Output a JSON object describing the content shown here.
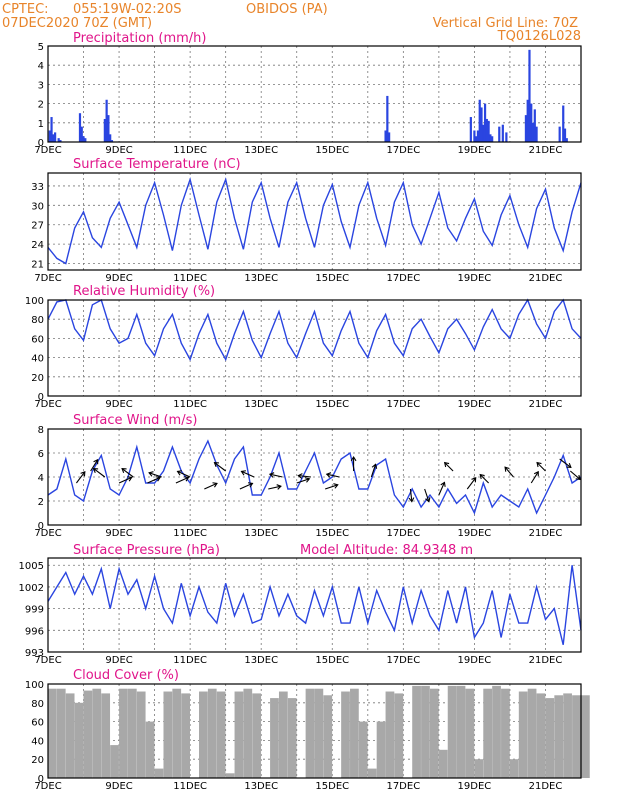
{
  "header": {
    "source": "CPTEC:",
    "coords": "055:19W-02:20S",
    "station": "OBIDOS (PA)",
    "init_time": "07DEC2020 70Z (GMT)",
    "grid_line": "Vertical Grid Line: 70Z",
    "model_code": "TQ0126L028",
    "model_altitude": "Model Altitude: 84.9348 m"
  },
  "x_dates": [
    "7DEC",
    "9DEC",
    "11DEC",
    "13DEC",
    "15DEC",
    "17DEC",
    "19DEC",
    "21DEC"
  ],
  "colors": {
    "series": "#2a45e0",
    "cloud": "#a8a8a8",
    "title": "#e0158a",
    "header": "#e8842a"
  },
  "chart_data": [
    {
      "type": "bar",
      "title": "Precipitation (mm/h)",
      "ylim": [
        0,
        5
      ],
      "yticks": [
        0,
        1,
        2,
        3,
        4,
        5
      ],
      "x_unit": "days since 7DEC",
      "x": [
        0.05,
        0.1,
        0.15,
        0.2,
        0.3,
        0.35,
        0.9,
        0.95,
        1.0,
        1.05,
        1.6,
        1.65,
        1.7,
        1.75,
        1.8,
        9.5,
        9.55,
        9.6,
        11.9,
        12.0,
        12.05,
        12.1,
        12.15,
        12.2,
        12.25,
        12.3,
        12.35,
        12.4,
        12.45,
        12.5,
        12.7,
        12.8,
        12.9,
        13.45,
        13.5,
        13.55,
        13.6,
        13.65,
        13.7,
        13.75,
        14.4,
        14.5,
        14.55,
        14.6
      ],
      "values": [
        0.6,
        1.3,
        0.4,
        0.5,
        0.2,
        0.1,
        1.5,
        0.8,
        0.3,
        0.2,
        1.2,
        2.2,
        1.4,
        0.4,
        0.1,
        0.6,
        2.4,
        0.5,
        1.3,
        0.6,
        0.3,
        0.6,
        2.2,
        1.8,
        0.9,
        2.0,
        1.2,
        1.1,
        0.4,
        0.3,
        0.8,
        0.9,
        0.5,
        1.4,
        2.2,
        4.8,
        2.0,
        1.0,
        1.7,
        0.8,
        0.8,
        1.9,
        0.7,
        0.2
      ]
    },
    {
      "type": "line",
      "title": "Surface Temperature (nC)",
      "ylim": [
        20,
        35
      ],
      "yticks": [
        21,
        24,
        27,
        30,
        33
      ],
      "x_unit": "days since 7DEC",
      "x": [
        0,
        0.25,
        0.5,
        0.75,
        1.0,
        1.25,
        1.5,
        1.75,
        2.0,
        2.25,
        2.5,
        2.75,
        3.0,
        3.25,
        3.5,
        3.75,
        4.0,
        4.25,
        4.5,
        4.75,
        5.0,
        5.25,
        5.5,
        5.75,
        6.0,
        6.25,
        6.5,
        6.75,
        7.0,
        7.25,
        7.5,
        7.75,
        8.0,
        8.25,
        8.5,
        8.75,
        9.0,
        9.25,
        9.5,
        9.75,
        10.0,
        10.25,
        10.5,
        10.75,
        11.0,
        11.25,
        11.5,
        11.75,
        12.0,
        12.25,
        12.5,
        12.75,
        13.0,
        13.25,
        13.5,
        13.75,
        14.0,
        14.25,
        14.5,
        14.75,
        15.0
      ],
      "values": [
        23.5,
        21.8,
        21.0,
        26.5,
        29.0,
        25.0,
        23.5,
        28.0,
        30.5,
        27.0,
        23.5,
        30.0,
        33.5,
        28.5,
        23.0,
        30.0,
        34.0,
        28.5,
        23.2,
        30.5,
        34.0,
        28.0,
        23.2,
        30.5,
        33.5,
        28.0,
        23.5,
        30.5,
        33.5,
        28.0,
        23.5,
        30.0,
        33.2,
        27.5,
        23.5,
        30.0,
        33.5,
        28.0,
        23.8,
        30.5,
        33.5,
        27.0,
        24.0,
        28.0,
        32.0,
        26.5,
        24.5,
        28.0,
        31.0,
        26.0,
        23.8,
        28.5,
        31.5,
        27.0,
        23.5,
        29.5,
        32.5,
        26.5,
        23.0,
        29.0,
        33.5
      ]
    },
    {
      "type": "line",
      "title": "Relative Humidity (%)",
      "ylim": [
        0,
        100
      ],
      "yticks": [
        0,
        20,
        40,
        60,
        80,
        100
      ],
      "x_unit": "days since 7DEC",
      "x": [
        0,
        0.25,
        0.5,
        0.75,
        1.0,
        1.25,
        1.5,
        1.75,
        2.0,
        2.25,
        2.5,
        2.75,
        3.0,
        3.25,
        3.5,
        3.75,
        4.0,
        4.25,
        4.5,
        4.75,
        5.0,
        5.25,
        5.5,
        5.75,
        6.0,
        6.25,
        6.5,
        6.75,
        7.0,
        7.25,
        7.5,
        7.75,
        8.0,
        8.25,
        8.5,
        8.75,
        9.0,
        9.25,
        9.5,
        9.75,
        10.0,
        10.25,
        10.5,
        10.75,
        11.0,
        11.25,
        11.5,
        11.75,
        12.0,
        12.25,
        12.5,
        12.75,
        13.0,
        13.25,
        13.5,
        13.75,
        14.0,
        14.25,
        14.5,
        14.75,
        15.0
      ],
      "values": [
        80,
        98,
        100,
        70,
        58,
        95,
        100,
        70,
        55,
        60,
        85,
        55,
        42,
        70,
        85,
        55,
        38,
        65,
        85,
        55,
        38,
        65,
        88,
        58,
        40,
        65,
        88,
        55,
        40,
        65,
        88,
        55,
        42,
        68,
        88,
        55,
        40,
        68,
        85,
        55,
        42,
        70,
        80,
        62,
        45,
        70,
        80,
        65,
        48,
        72,
        90,
        70,
        60,
        85,
        100,
        75,
        60,
        88,
        100,
        70,
        60
      ]
    },
    {
      "type": "line",
      "title": "Surface Wind (m/s)",
      "ylim": [
        0,
        8
      ],
      "yticks": [
        0,
        2,
        4,
        6,
        8
      ],
      "x_unit": "days since 7DEC",
      "x": [
        0,
        0.25,
        0.5,
        0.75,
        1.0,
        1.25,
        1.5,
        1.75,
        2.0,
        2.25,
        2.5,
        2.75,
        3.0,
        3.25,
        3.5,
        3.75,
        4.0,
        4.25,
        4.5,
        4.75,
        5.0,
        5.25,
        5.5,
        5.75,
        6.0,
        6.25,
        6.5,
        6.75,
        7.0,
        7.25,
        7.5,
        7.75,
        8.0,
        8.25,
        8.5,
        8.75,
        9.0,
        9.25,
        9.5,
        9.75,
        10.0,
        10.25,
        10.5,
        10.75,
        11.0,
        11.25,
        11.5,
        11.75,
        12.0,
        12.25,
        12.5,
        12.75,
        13.0,
        13.25,
        13.5,
        13.75,
        14.0,
        14.25,
        14.5,
        14.75,
        15.0
      ],
      "values": [
        2.5,
        3.0,
        5.5,
        2.5,
        2.0,
        4.5,
        5.8,
        3.0,
        2.5,
        4.0,
        6.5,
        3.5,
        3.5,
        4.5,
        6.5,
        4.5,
        3.5,
        5.5,
        7.0,
        5.0,
        3.5,
        5.5,
        6.5,
        2.5,
        2.5,
        4.0,
        6.0,
        3.0,
        3.0,
        4.5,
        6.0,
        3.5,
        4.0,
        5.5,
        6.0,
        3.0,
        3.0,
        5.0,
        5.5,
        2.5,
        1.5,
        3.0,
        1.5,
        2.5,
        1.5,
        3.0,
        1.8,
        2.5,
        1.0,
        3.5,
        1.5,
        2.5,
        2.0,
        1.5,
        3.0,
        1.0,
        2.5,
        4.0,
        5.8,
        3.5,
        4.0
      ],
      "vectors": [
        {
          "day": 0.8,
          "speed": 3.5,
          "dx": 0.6,
          "dy": 0.8
        },
        {
          "day": 1.2,
          "speed": 4.5,
          "dx": 0.5,
          "dy": 0.8
        },
        {
          "day": 1.6,
          "speed": 4.0,
          "dx": -0.8,
          "dy": 0.6
        },
        {
          "day": 2.0,
          "speed": 3.5,
          "dx": 0.9,
          "dy": 0.4
        },
        {
          "day": 2.4,
          "speed": 4.0,
          "dx": -0.8,
          "dy": 0.6
        },
        {
          "day": 2.8,
          "speed": 3.5,
          "dx": 0.9,
          "dy": 0.4
        },
        {
          "day": 3.2,
          "speed": 4.0,
          "dx": -0.9,
          "dy": 0.3
        },
        {
          "day": 3.6,
          "speed": 3.5,
          "dx": 0.9,
          "dy": 0.4
        },
        {
          "day": 4.0,
          "speed": 4.0,
          "dx": -0.9,
          "dy": 0.4
        },
        {
          "day": 4.4,
          "speed": 3.0,
          "dx": 0.9,
          "dy": 0.4
        },
        {
          "day": 5.0,
          "speed": 4.5,
          "dx": -0.8,
          "dy": 0.6
        },
        {
          "day": 5.4,
          "speed": 3.0,
          "dx": 0.9,
          "dy": 0.4
        },
        {
          "day": 5.8,
          "speed": 4.0,
          "dx": -0.9,
          "dy": 0.4
        },
        {
          "day": 6.2,
          "speed": 3.0,
          "dx": 0.9,
          "dy": 0.2
        },
        {
          "day": 6.6,
          "speed": 4.0,
          "dx": -0.9,
          "dy": 0.2
        },
        {
          "day": 7.0,
          "speed": 3.5,
          "dx": 0.9,
          "dy": 0.3
        },
        {
          "day": 7.4,
          "speed": 4.0,
          "dx": -0.9,
          "dy": 0.1
        },
        {
          "day": 7.8,
          "speed": 3.0,
          "dx": 0.9,
          "dy": 0.3
        },
        {
          "day": 8.2,
          "speed": 4.0,
          "dx": -0.9,
          "dy": 0.2
        },
        {
          "day": 8.6,
          "speed": 4.5,
          "dx": 0.0,
          "dy": 1.0
        },
        {
          "day": 9.1,
          "speed": 4.0,
          "dx": 0.3,
          "dy": 0.9
        },
        {
          "day": 10.2,
          "speed": 3.0,
          "dx": 0.1,
          "dy": -0.9
        },
        {
          "day": 10.6,
          "speed": 3.0,
          "dx": 0.3,
          "dy": -0.9
        },
        {
          "day": 11.0,
          "speed": 2.5,
          "dx": 0.4,
          "dy": 0.9
        },
        {
          "day": 11.4,
          "speed": 4.5,
          "dx": -0.6,
          "dy": 0.6
        },
        {
          "day": 11.8,
          "speed": 3.0,
          "dx": 0.6,
          "dy": 0.8
        },
        {
          "day": 12.4,
          "speed": 3.5,
          "dx": -0.6,
          "dy": 0.6
        },
        {
          "day": 13.1,
          "speed": 4.0,
          "dx": -0.6,
          "dy": 0.7
        },
        {
          "day": 13.6,
          "speed": 3.5,
          "dx": 0.5,
          "dy": 0.8
        },
        {
          "day": 14.0,
          "speed": 4.5,
          "dx": -0.6,
          "dy": 0.6
        },
        {
          "day": 14.4,
          "speed": 5.5,
          "dx": 0.8,
          "dy": -0.6
        },
        {
          "day": 14.7,
          "speed": 4.5,
          "dx": 0.7,
          "dy": -0.6
        }
      ]
    },
    {
      "type": "line",
      "title": "Surface Pressure (hPa)",
      "ylim": [
        993,
        1006
      ],
      "yticks": [
        993,
        996,
        999,
        1002,
        1005
      ],
      "x_unit": "days since 7DEC",
      "x": [
        0,
        0.25,
        0.5,
        0.75,
        1.0,
        1.25,
        1.5,
        1.75,
        2.0,
        2.25,
        2.5,
        2.75,
        3.0,
        3.25,
        3.5,
        3.75,
        4.0,
        4.25,
        4.5,
        4.75,
        5.0,
        5.25,
        5.5,
        5.75,
        6.0,
        6.25,
        6.5,
        6.75,
        7.0,
        7.25,
        7.5,
        7.75,
        8.0,
        8.25,
        8.5,
        8.75,
        9.0,
        9.25,
        9.5,
        9.75,
        10.0,
        10.25,
        10.5,
        10.75,
        11.0,
        11.25,
        11.5,
        11.75,
        12.0,
        12.25,
        12.5,
        12.75,
        13.0,
        13.25,
        13.5,
        13.75,
        14.0,
        14.25,
        14.5,
        14.75,
        15.0
      ],
      "values": [
        1000,
        1002,
        1004,
        1001,
        1003.5,
        1001,
        1004.5,
        999,
        1004.5,
        1001,
        1003,
        999,
        1003.5,
        999,
        997,
        1002.5,
        998,
        1002,
        998.5,
        997,
        1002.5,
        998,
        1001,
        997,
        997.5,
        1002,
        998,
        1001,
        998,
        997,
        1001.5,
        998,
        1002,
        997,
        997,
        1002,
        997,
        1001.5,
        998.5,
        996,
        1002,
        997,
        1001.5,
        998,
        996,
        1001.5,
        997,
        1002,
        995,
        997,
        1001.5,
        995,
        1001,
        997,
        997,
        1002,
        997.5,
        999,
        994,
        1005,
        996
      ]
    },
    {
      "type": "bar",
      "title": "Cloud Cover (%)",
      "ylim": [
        0,
        100
      ],
      "yticks": [
        0,
        20,
        40,
        60,
        80,
        100
      ],
      "x_unit": "days since 7DEC",
      "x": [
        0,
        0.25,
        0.5,
        0.75,
        1.0,
        1.25,
        1.5,
        1.75,
        2.0,
        2.25,
        2.5,
        2.75,
        3.0,
        3.25,
        3.5,
        3.75,
        4.0,
        4.25,
        4.5,
        4.75,
        5.0,
        5.25,
        5.5,
        5.75,
        6.0,
        6.25,
        6.5,
        6.75,
        7.0,
        7.25,
        7.5,
        7.75,
        8.0,
        8.25,
        8.5,
        8.75,
        9.0,
        9.25,
        9.5,
        9.75,
        10.0,
        10.25,
        10.5,
        10.75,
        11.0,
        11.25,
        11.5,
        11.75,
        12.0,
        12.25,
        12.5,
        12.75,
        13.0,
        13.25,
        13.5,
        13.75,
        14.0,
        14.25,
        14.5,
        14.75,
        15.0
      ],
      "values": [
        95,
        95,
        90,
        80,
        93,
        95,
        90,
        35,
        95,
        95,
        92,
        60,
        10,
        92,
        95,
        90,
        0,
        92,
        95,
        92,
        5,
        92,
        95,
        90,
        0,
        85,
        92,
        85,
        0,
        95,
        95,
        88,
        0,
        92,
        95,
        60,
        10,
        60,
        92,
        90,
        0,
        98,
        98,
        95,
        30,
        98,
        98,
        95,
        20,
        95,
        98,
        95,
        20,
        92,
        95,
        90,
        85,
        88,
        90,
        88,
        88
      ]
    }
  ]
}
